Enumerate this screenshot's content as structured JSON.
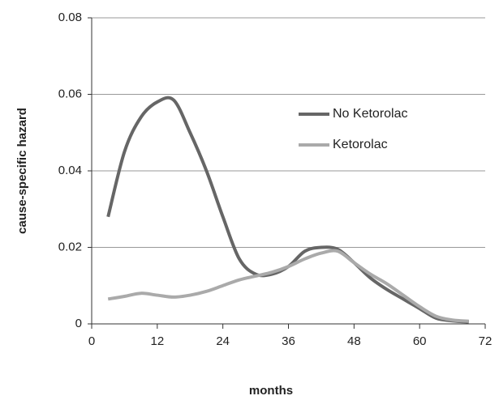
{
  "chart_data": {
    "type": "line",
    "x_label": "months",
    "y_label": "cause-specific hazard",
    "x": [
      3,
      6,
      9,
      12,
      15,
      18,
      21,
      24,
      27,
      30,
      33,
      36,
      39,
      42,
      45,
      48,
      51,
      54,
      57,
      60,
      63,
      66,
      69
    ],
    "series": [
      {
        "name": "No Ketorolac",
        "color": "#666666",
        "values": [
          0.028,
          0.045,
          0.054,
          0.058,
          0.0585,
          0.05,
          0.04,
          0.028,
          0.017,
          0.013,
          0.013,
          0.015,
          0.019,
          0.02,
          0.0195,
          0.016,
          0.012,
          0.009,
          0.0065,
          0.004,
          0.0015,
          0.0008,
          0.0005
        ]
      },
      {
        "name": "Ketorolac",
        "color": "#aaaaaa",
        "values": [
          0.0065,
          0.0072,
          0.008,
          0.0075,
          0.007,
          0.0075,
          0.0085,
          0.01,
          0.0115,
          0.0125,
          0.0135,
          0.015,
          0.017,
          0.0185,
          0.019,
          0.016,
          0.013,
          0.0105,
          0.0075,
          0.0045,
          0.002,
          0.001,
          0.0007
        ]
      }
    ],
    "xlim": [
      0,
      72
    ],
    "xticks": [
      0,
      12,
      24,
      36,
      48,
      60,
      72
    ],
    "ylim": [
      0,
      0.08
    ],
    "yticks": [
      0,
      0.02,
      0.04,
      0.06,
      0.08
    ],
    "grid": true
  }
}
